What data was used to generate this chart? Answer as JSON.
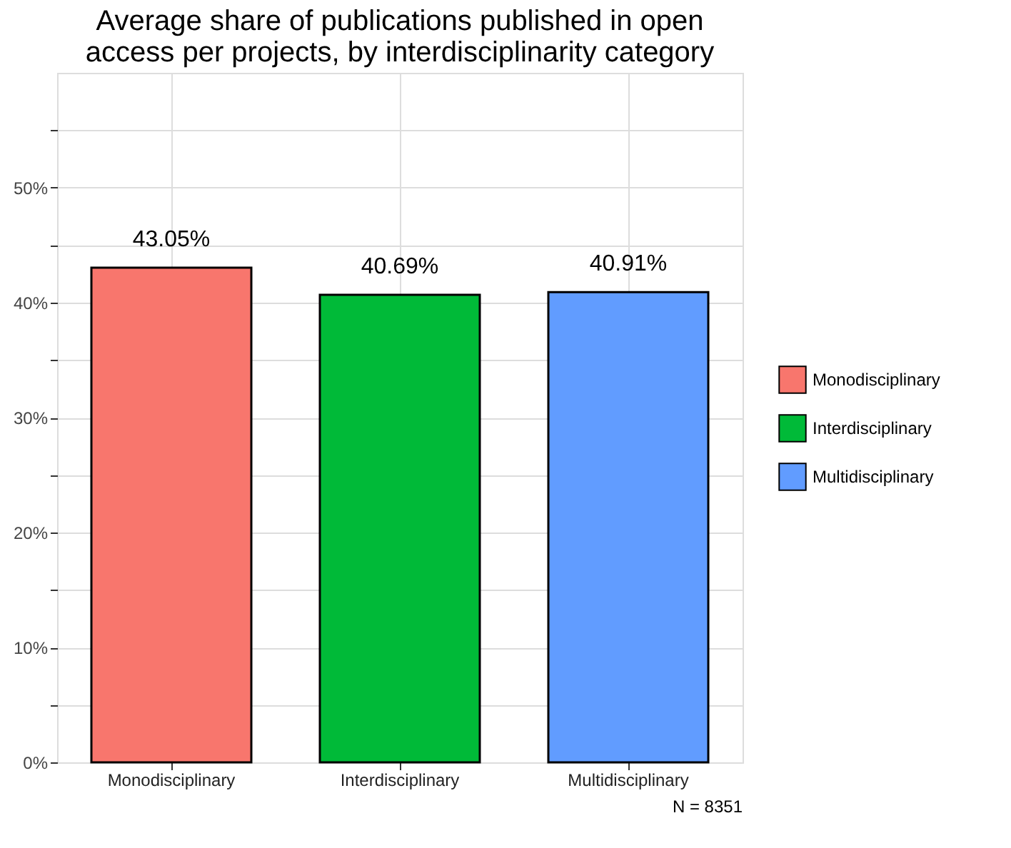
{
  "chart_data": {
    "type": "bar",
    "title": "Average share of publications published in open\naccess per projects, by interdisciplinarity category",
    "categories": [
      "Monodisciplinary",
      "Interdisciplinary",
      "Multidisciplinary"
    ],
    "series": [
      {
        "name": "Monodisciplinary",
        "color": "#f8766d",
        "values": [
          43.05,
          null,
          null
        ],
        "value_labels": [
          "43.05%",
          null,
          null
        ]
      },
      {
        "name": "Interdisciplinary",
        "color": "#00ba38",
        "values": [
          null,
          40.69,
          null
        ],
        "value_labels": [
          null,
          "40.69%",
          null
        ]
      },
      {
        "name": "Multidisciplinary",
        "color": "#619cff",
        "values": [
          null,
          null,
          40.91
        ],
        "value_labels": [
          null,
          null,
          "40.91%"
        ]
      }
    ],
    "ylim": [
      0,
      60
    ],
    "yticks": [
      {
        "value": 0,
        "label": "0%"
      },
      {
        "value": 5,
        "label": null
      },
      {
        "value": 10,
        "label": "10%"
      },
      {
        "value": 15,
        "label": null
      },
      {
        "value": 20,
        "label": "20%"
      },
      {
        "value": 25,
        "label": null
      },
      {
        "value": 30,
        "label": "30%"
      },
      {
        "value": 35,
        "label": null
      },
      {
        "value": 40,
        "label": "40%"
      },
      {
        "value": 45,
        "label": null
      },
      {
        "value": 50,
        "label": "50%"
      },
      {
        "value": 55,
        "label": null
      }
    ],
    "grid": true,
    "legend": "right",
    "annotations": [
      "N = 8351"
    ]
  }
}
